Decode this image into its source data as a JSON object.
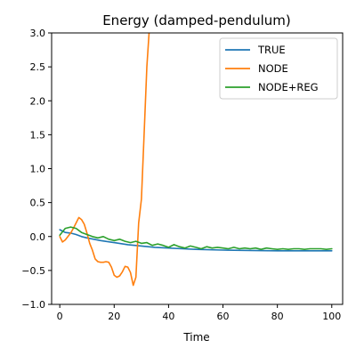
{
  "chart_data": {
    "type": "line",
    "title": "Energy (damped-pendulum)",
    "xlabel": "Time",
    "ylabel": "",
    "xlim": [
      -3,
      104
    ],
    "ylim": [
      -1.0,
      3.0
    ],
    "xticks": [
      0,
      20,
      40,
      60,
      80,
      100
    ],
    "yticks": [
      -1.0,
      -0.5,
      0.0,
      0.5,
      1.0,
      1.5,
      2.0,
      2.5,
      3.0
    ],
    "xtick_labels": [
      "0",
      "20",
      "40",
      "60",
      "80",
      "100"
    ],
    "ytick_labels": [
      "−1.0",
      "−0.5",
      "0.0",
      "0.5",
      "1.0",
      "1.5",
      "2.0",
      "2.5",
      "3.0"
    ],
    "grid": false,
    "legend_position": "top-right",
    "series": [
      {
        "name": "TRUE",
        "color": "#1f77b4",
        "x": [
          0,
          1,
          2,
          4,
          6,
          8,
          10,
          15,
          20,
          25,
          30,
          35,
          40,
          45,
          50,
          60,
          70,
          80,
          90,
          100
        ],
        "y": [
          0.1,
          0.08,
          0.06,
          0.05,
          0.03,
          0.0,
          -0.02,
          -0.06,
          -0.09,
          -0.12,
          -0.14,
          -0.16,
          -0.17,
          -0.18,
          -0.19,
          -0.2,
          -0.205,
          -0.21,
          -0.21,
          -0.21
        ]
      },
      {
        "name": "NODE",
        "color": "#ff7f0e",
        "x": [
          0,
          1,
          2,
          3,
          4,
          5,
          6,
          7,
          8,
          9,
          10,
          11,
          12,
          13,
          14,
          15,
          16,
          17,
          18,
          19,
          20,
          21,
          22,
          23,
          24,
          25,
          26,
          27,
          28,
          29,
          30,
          31,
          32,
          33,
          33.5
        ],
        "y": [
          0.0,
          -0.08,
          -0.05,
          0.0,
          0.05,
          0.12,
          0.2,
          0.28,
          0.25,
          0.18,
          0.05,
          -0.1,
          -0.2,
          -0.33,
          -0.37,
          -0.38,
          -0.38,
          -0.37,
          -0.38,
          -0.45,
          -0.57,
          -0.6,
          -0.58,
          -0.52,
          -0.44,
          -0.45,
          -0.53,
          -0.72,
          -0.6,
          0.2,
          0.55,
          1.5,
          2.5,
          3.1,
          3.2
        ]
      },
      {
        "name": "NODE+REG",
        "color": "#2ca02c",
        "x": [
          0,
          2,
          4,
          6,
          8,
          10,
          12,
          14,
          16,
          18,
          20,
          22,
          24,
          26,
          28,
          30,
          32,
          34,
          36,
          38,
          40,
          42,
          44,
          46,
          48,
          50,
          52,
          54,
          56,
          58,
          60,
          62,
          64,
          66,
          68,
          70,
          72,
          74,
          76,
          78,
          80,
          82,
          84,
          86,
          88,
          90,
          92,
          94,
          96,
          98,
          100
        ],
        "y": [
          0.02,
          0.12,
          0.14,
          0.12,
          0.06,
          0.03,
          0.0,
          -0.02,
          0.0,
          -0.04,
          -0.06,
          -0.04,
          -0.07,
          -0.09,
          -0.07,
          -0.1,
          -0.09,
          -0.13,
          -0.11,
          -0.13,
          -0.16,
          -0.12,
          -0.15,
          -0.17,
          -0.14,
          -0.16,
          -0.18,
          -0.15,
          -0.17,
          -0.16,
          -0.17,
          -0.18,
          -0.16,
          -0.18,
          -0.17,
          -0.18,
          -0.17,
          -0.19,
          -0.17,
          -0.18,
          -0.19,
          -0.18,
          -0.19,
          -0.18,
          -0.18,
          -0.19,
          -0.18,
          -0.18,
          -0.18,
          -0.19,
          -0.18
        ]
      }
    ]
  }
}
